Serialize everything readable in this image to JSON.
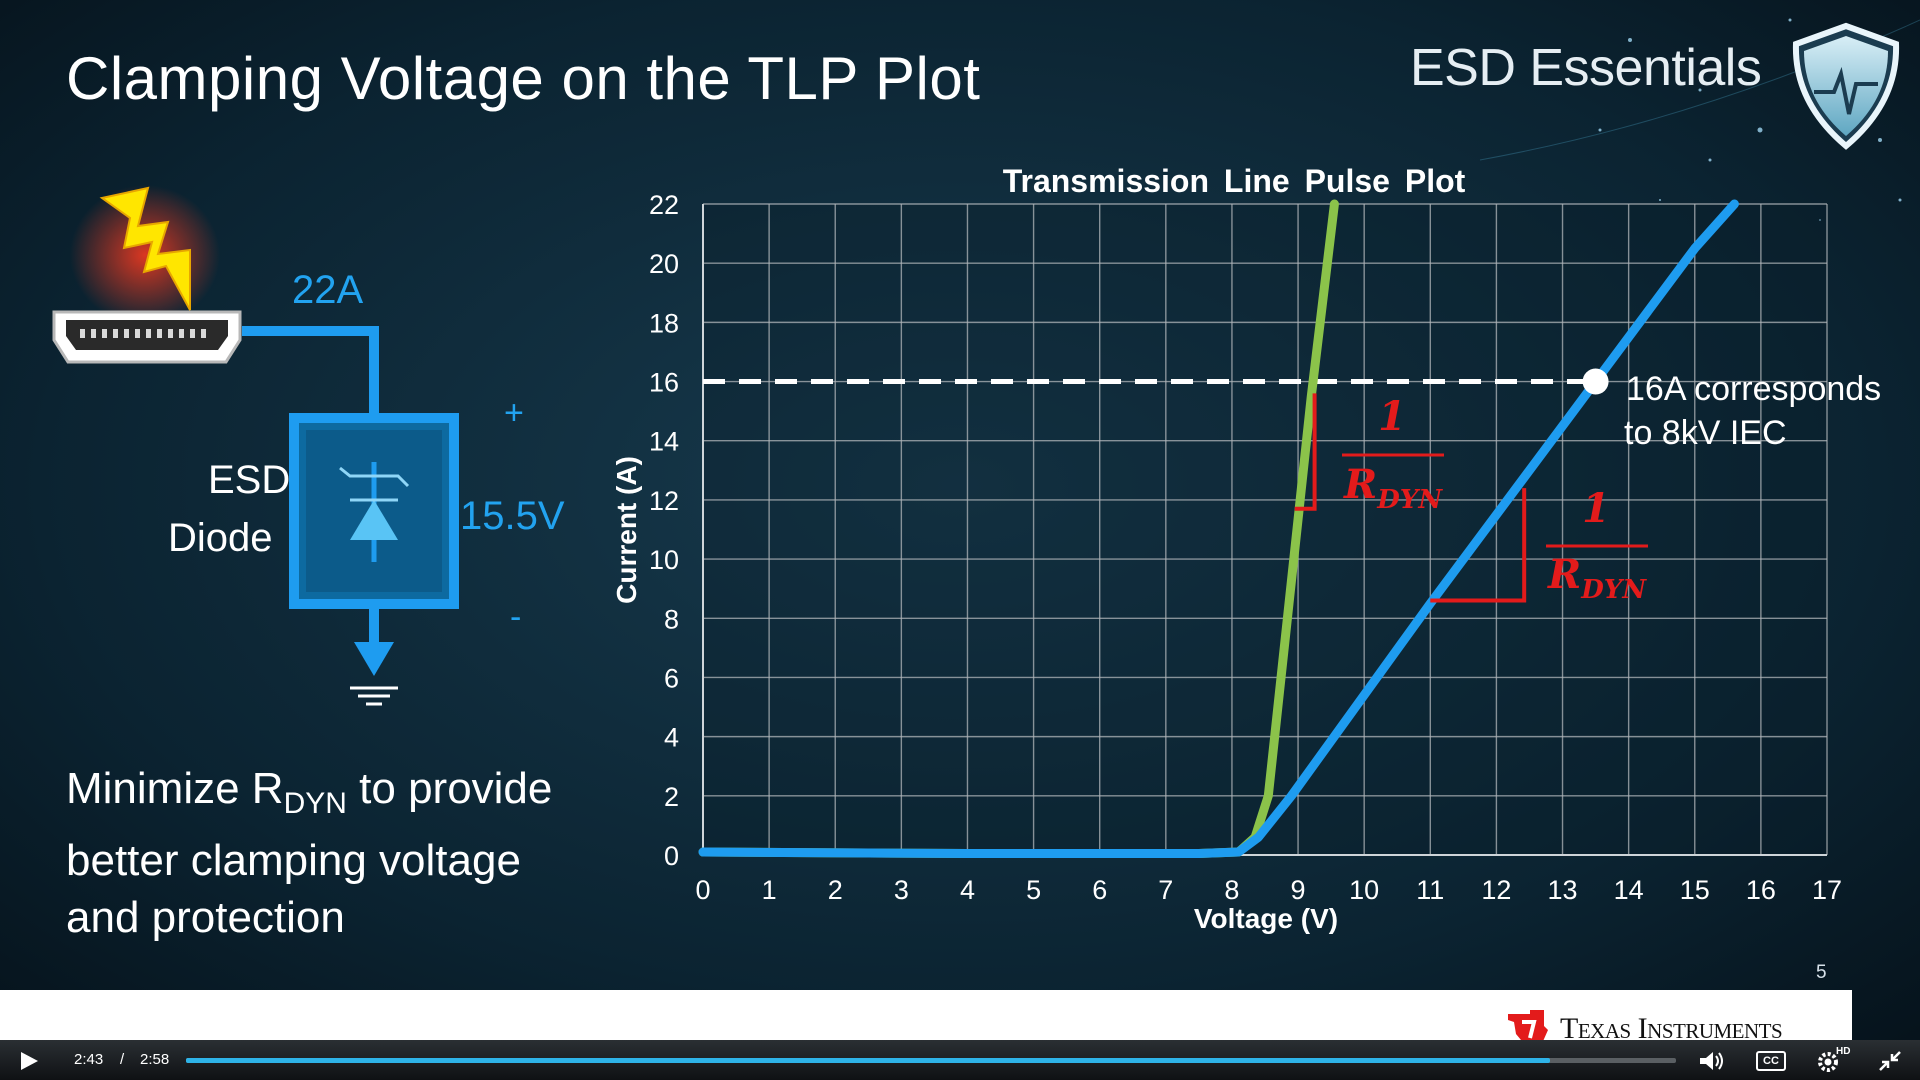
{
  "slide": {
    "title": "Clamping Voltage on the TLP Plot",
    "brand": "ESD Essentials",
    "current_label": "22A",
    "diode_label_line1": "ESD",
    "diode_label_line2": "Diode",
    "plus": "+",
    "minus": "-",
    "voltage_label": "15.5V",
    "minimize_pre": "Minimize R",
    "minimize_sub": "DYN",
    "minimize_post": " to provide",
    "minimize_line2": "better clamping voltage",
    "minimize_line3": "and protection",
    "slide_number": "5",
    "company": "Texas Instruments",
    "icons": [
      "lightning-icon",
      "hdmi-connector-icon",
      "tvs-diode-icon",
      "ground-icon",
      "shield-heartbeat-icon",
      "ti-logo-icon"
    ]
  },
  "chart_data": {
    "type": "line",
    "title": "Transmission Line Pulse Plot",
    "xlabel": "Voltage (V)",
    "ylabel": "Current (A)",
    "xlim": [
      0,
      17
    ],
    "ylim": [
      0,
      22
    ],
    "xticks": [
      "0",
      "1",
      "2",
      "3",
      "4",
      "5",
      "6",
      "7",
      "8",
      "9",
      "10",
      "11",
      "12",
      "13",
      "14",
      "15",
      "16",
      "17"
    ],
    "yticks": [
      "0",
      "2",
      "4",
      "6",
      "8",
      "10",
      "12",
      "14",
      "16",
      "18",
      "20",
      "22"
    ],
    "grid": true,
    "series": [
      {
        "color": "#8bc34a",
        "x": [
          0,
          4,
          7.5,
          8.1,
          8.35,
          8.55,
          9.2,
          9.55
        ],
        "y": [
          0.1,
          0.05,
          0.05,
          0.1,
          0.6,
          2.0,
          15.5,
          22.0
        ]
      },
      {
        "color": "#1e9cf0",
        "x": [
          0,
          4,
          7.5,
          8.1,
          8.4,
          8.9,
          11.0,
          13.5,
          15.0,
          15.6
        ],
        "y": [
          0.1,
          0.05,
          0.05,
          0.1,
          0.6,
          2.0,
          8.5,
          16.0,
          20.5,
          22.0
        ]
      }
    ],
    "reference_line": {
      "y": 16,
      "color": "#ffffff",
      "style": "dashed"
    },
    "marker": {
      "x": 13.5,
      "y": 16,
      "label_line1": "16A corresponds",
      "label_line2": "to 8kV IEC"
    },
    "annotations": [
      {
        "numerator": "1",
        "denominator": "R",
        "subscript": "DYN",
        "color": "#e31b1b"
      },
      {
        "numerator": "1",
        "denominator": "R",
        "subscript": "DYN",
        "color": "#e31b1b"
      }
    ]
  },
  "player": {
    "current_time": "2:43",
    "separator": "/",
    "duration": "2:58",
    "progress": 0.9157,
    "hd_badge": "HD",
    "cc_label": "CC",
    "icons": [
      "play-icon",
      "volume-icon",
      "cc-icon",
      "settings-icon",
      "exit-fullscreen-icon"
    ]
  }
}
